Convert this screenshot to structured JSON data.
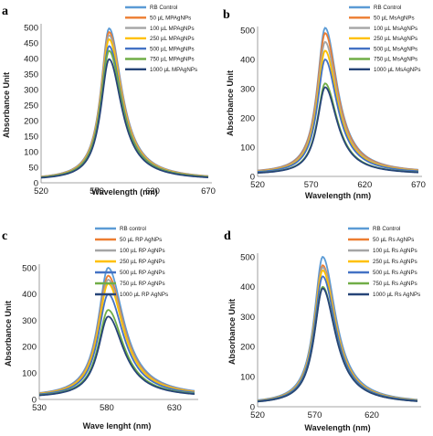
{
  "chart_data": [
    {
      "type": "line",
      "panel_label": "a",
      "xlabel": "Wavelength (nm)",
      "ylabel": "Absorbance Unit",
      "xlim": [
        520,
        670
      ],
      "ylim": [
        0,
        500
      ],
      "xticks": [
        520,
        570,
        620,
        670
      ],
      "yticks": [
        0,
        50,
        100,
        150,
        200,
        250,
        300,
        350,
        400,
        450,
        500
      ],
      "peak_x": 581,
      "legend_position": "top-right",
      "series": [
        {
          "name": "RB Control",
          "peak": 497,
          "color": "#5b9bd5"
        },
        {
          "name": "50 µL MPAgNPs",
          "peak": 485,
          "color": "#ed7d31"
        },
        {
          "name": "100 µL MPAgNPs",
          "peak": 475,
          "color": "#a5a5a5"
        },
        {
          "name": "250 µL MPAgNPs",
          "peak": 462,
          "color": "#ffc000"
        },
        {
          "name": "500 µL MPAgNPs",
          "peak": 440,
          "color": "#4472c4"
        },
        {
          "name": "750 µL MPAgNPs",
          "peak": 425,
          "color": "#70ad47"
        },
        {
          "name": "1000 µL MPAgNPs",
          "peak": 398,
          "color": "#264478"
        }
      ]
    },
    {
      "type": "line",
      "panel_label": "b",
      "xlabel": "Wavelength (nm)",
      "ylabel": "Absorbance Unit",
      "xlim": [
        520,
        670
      ],
      "ylim": [
        0,
        500
      ],
      "xticks": [
        520,
        570,
        620,
        670
      ],
      "yticks": [
        0,
        100,
        200,
        300,
        400,
        500
      ],
      "peak_x": 583,
      "legend_position": "top-right",
      "series": [
        {
          "name": "RB Control",
          "peak": 508,
          "color": "#5b9bd5"
        },
        {
          "name": "50 µL MsAgNPs",
          "peak": 490,
          "color": "#ed7d31"
        },
        {
          "name": "100 µL MsAgNPs",
          "peak": 460,
          "color": "#a5a5a5"
        },
        {
          "name": "250 µL MsAgNPs",
          "peak": 430,
          "color": "#ffc000"
        },
        {
          "name": "500 µL MsAgNPs",
          "peak": 400,
          "color": "#4472c4"
        },
        {
          "name": "750 µL MsAgNPs",
          "peak": 318,
          "color": "#70ad47"
        },
        {
          "name": "1000 µL MsAgNPs",
          "peak": 305,
          "color": "#264478"
        }
      ]
    },
    {
      "type": "line",
      "panel_label": "c",
      "xlabel": "Wave lenght (nm)",
      "ylabel": "Absorbance Unit",
      "xlim": [
        530,
        645
      ],
      "ylim": [
        0,
        500
      ],
      "xticks": [
        530,
        580,
        630
      ],
      "yticks": [
        0,
        100,
        200,
        300,
        400,
        500
      ],
      "peak_x": 581,
      "legend_position": "top-right",
      "series": [
        {
          "name": "RB control",
          "peak": 500,
          "color": "#5b9bd5"
        },
        {
          "name": "50 µL RP AgNPs",
          "peak": 470,
          "color": "#ed7d31"
        },
        {
          "name": "100 µL RP AgNPs",
          "peak": 455,
          "color": "#a5a5a5"
        },
        {
          "name": "250 µL RP AgNPs",
          "peak": 440,
          "color": "#ffc000"
        },
        {
          "name": "500 µL RP AgNPs",
          "peak": 400,
          "color": "#4472c4"
        },
        {
          "name": "750 µL RP AgNPs",
          "peak": 340,
          "color": "#70ad47"
        },
        {
          "name": "1000 µL RP AgNPs",
          "peak": 315,
          "color": "#264478"
        }
      ]
    },
    {
      "type": "line",
      "panel_label": "d",
      "xlabel": "Wavelength (nm)",
      "ylabel": "Absorbance Unit",
      "xlim": [
        520,
        660
      ],
      "ylim": [
        0,
        500
      ],
      "xticks": [
        520,
        570,
        620
      ],
      "yticks": [
        0,
        100,
        200,
        300,
        400,
        500
      ],
      "peak_x": 577,
      "legend_position": "top-right",
      "series": [
        {
          "name": "RB Control",
          "peak": 500,
          "color": "#5b9bd5"
        },
        {
          "name": "50 µL Rs AgNPs",
          "peak": 472,
          "color": "#ed7d31"
        },
        {
          "name": "100 µL Rs AgNPs",
          "peak": 465,
          "color": "#a5a5a5"
        },
        {
          "name": "250 µL Rs AgNPs",
          "peak": 455,
          "color": "#ffc000"
        },
        {
          "name": "500 µL Rs AgNPs",
          "peak": 435,
          "color": "#4472c4"
        },
        {
          "name": "750 µL Rs AgNPs",
          "peak": 400,
          "color": "#70ad47"
        },
        {
          "name": "1000 µL Rs AgNPs",
          "peak": 395,
          "color": "#264478"
        }
      ]
    }
  ]
}
